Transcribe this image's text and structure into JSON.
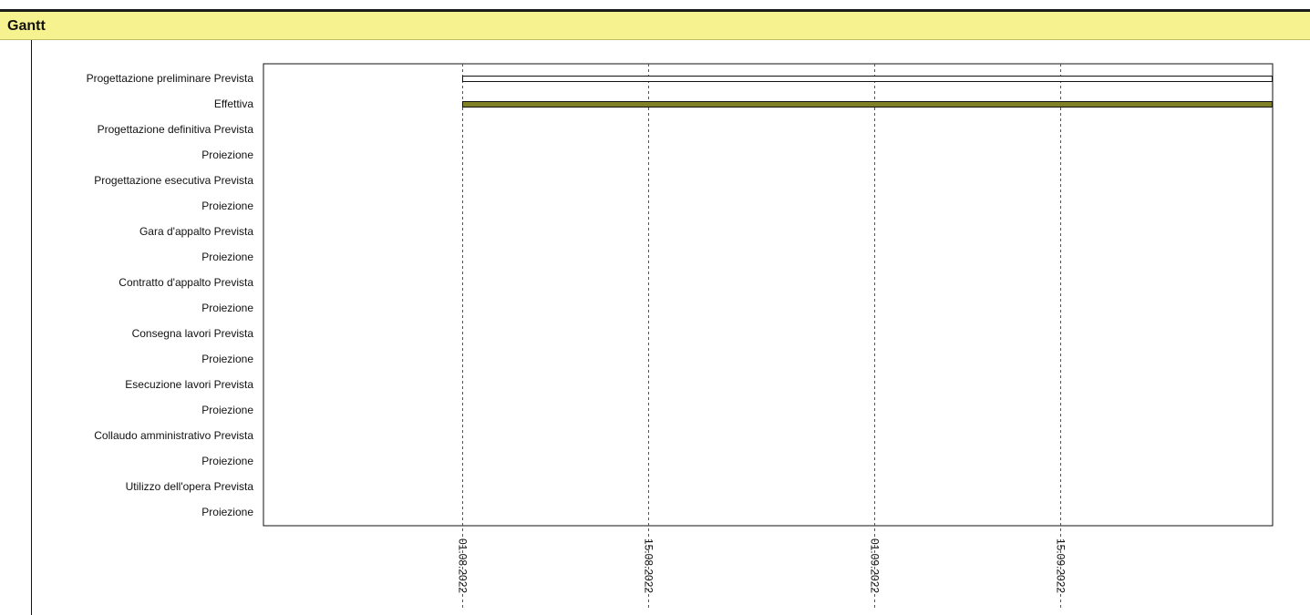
{
  "panel": {
    "title": "Gantt"
  },
  "chart_data": {
    "type": "gantt",
    "title": "",
    "rows": [
      "Progettazione preliminare Prevista",
      "Effettiva",
      "Progettazione definitiva Prevista",
      "Proiezione",
      "Progettazione esecutiva Prevista",
      "Proiezione",
      "Gara d'appalto Prevista",
      "Proiezione",
      "Contratto d'appalto Prevista",
      "Proiezione",
      "Consegna lavori Prevista",
      "Proiezione",
      "Esecuzione lavori Prevista",
      "Proiezione",
      "Collaudo amministrativo Prevista",
      "Proiezione",
      "Utilizzo dell'opera Prevista",
      "Proiezione"
    ],
    "x_ticks": [
      "01.08.2022",
      "15.08.2022",
      "01.09.2022",
      "15.09.2022"
    ],
    "xlim": [
      "2022-07-17",
      "2022-10-01"
    ],
    "bars": [
      {
        "row": 0,
        "start": "2022-08-01",
        "end": "2022-10-01",
        "style": "outline",
        "color": "#ffffff"
      },
      {
        "row": 1,
        "start": "2022-08-01",
        "end": "2022-10-01",
        "style": "filled",
        "color": "#808026"
      }
    ],
    "grid": "vertical-dashed",
    "legend": "none"
  },
  "colors": {
    "header_bg": "#f5f28f",
    "bar_fill": "#808026",
    "axis": "#111111"
  }
}
